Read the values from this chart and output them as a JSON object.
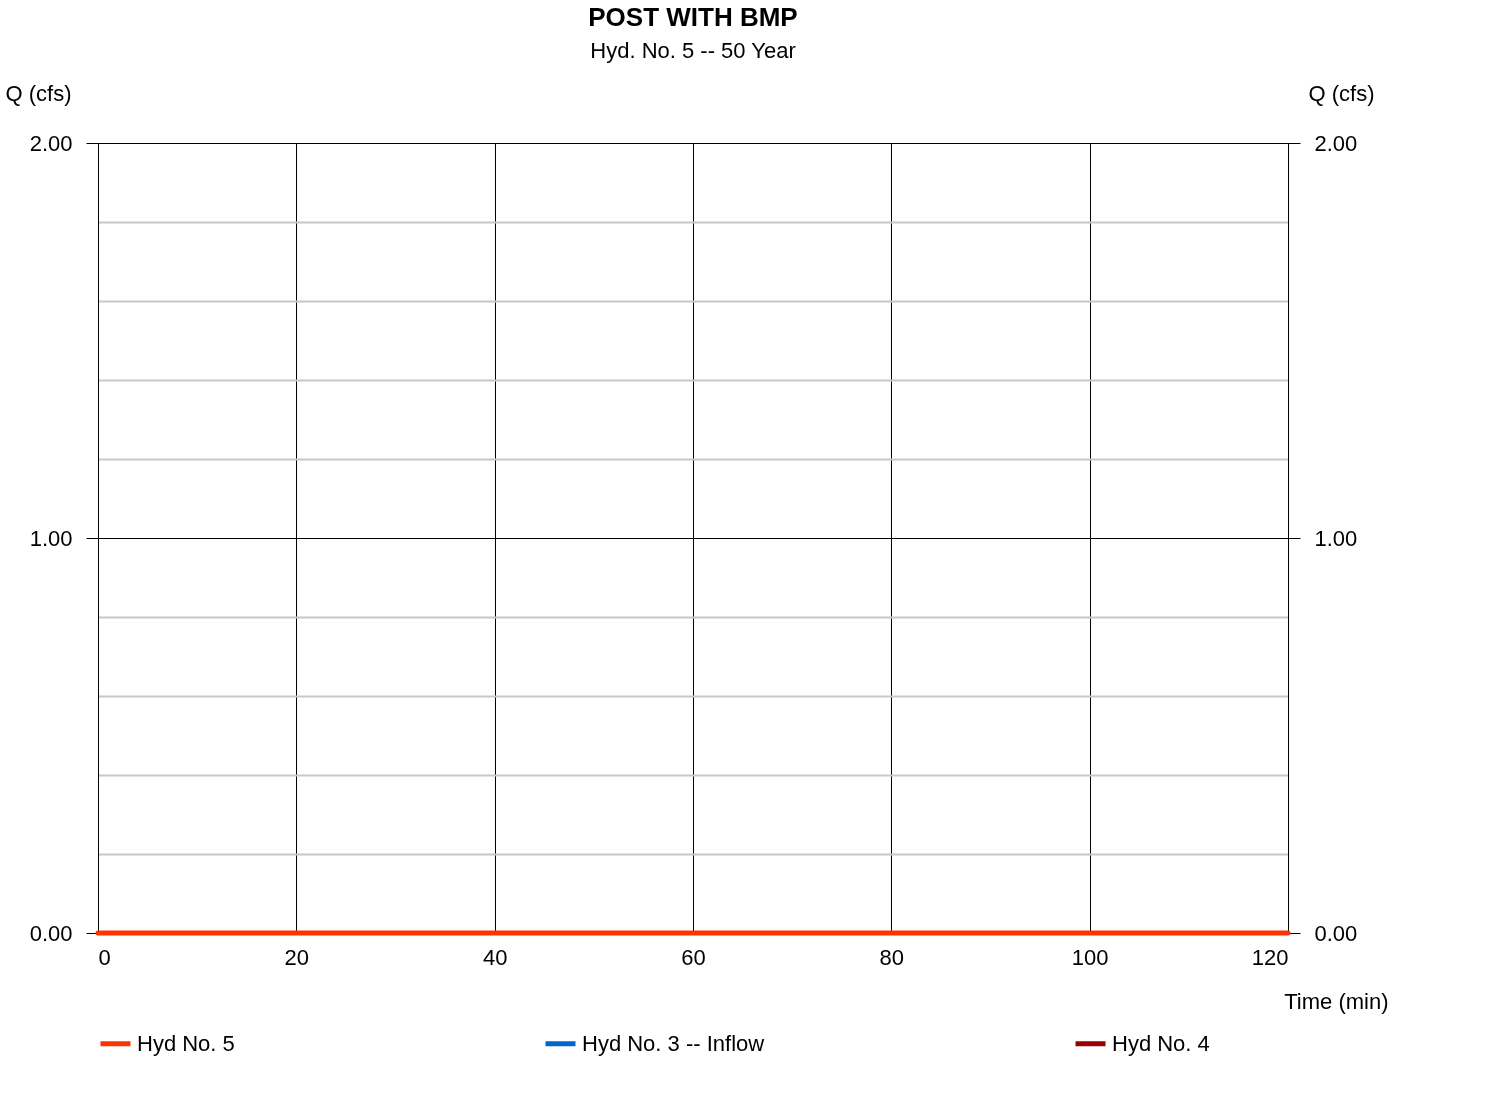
{
  "chart_data": {
    "type": "line",
    "title": "POST WITH BMP",
    "subtitle": "Hyd. No. 5 -- 50 Year",
    "xlabel": "Time (min)",
    "ylabel": "Q (cfs)",
    "y2label": "Q (cfs)",
    "x": [
      0,
      120
    ],
    "series": [
      {
        "name": "Hyd No. 5",
        "color": "#ff3300",
        "values": [
          0,
          0
        ]
      },
      {
        "name": "Hyd No. 3 -- Inflow",
        "color": "#0066cc",
        "values": [
          null,
          null
        ]
      },
      {
        "name": "Hyd No. 4",
        "color": "#990000",
        "values": [
          null,
          null
        ]
      }
    ],
    "xlim": [
      0,
      120
    ],
    "xticks": [
      0,
      20,
      40,
      60,
      80,
      100,
      120
    ],
    "ylim": [
      0,
      2
    ],
    "yticks": [
      {
        "value": 0,
        "label": "0.00"
      },
      {
        "value": 0.2,
        "label": null
      },
      {
        "value": 0.4,
        "label": null
      },
      {
        "value": 0.6,
        "label": null
      },
      {
        "value": 0.8,
        "label": null
      },
      {
        "value": 1,
        "label": "1.00"
      },
      {
        "value": 1.2,
        "label": null
      },
      {
        "value": 1.4,
        "label": null
      },
      {
        "value": 1.6,
        "label": null
      },
      {
        "value": 1.8,
        "label": null
      },
      {
        "value": 2,
        "label": "2.00"
      }
    ],
    "y2lim": [
      0,
      2
    ],
    "y2ticks": [
      {
        "value": 0,
        "label": "0.00"
      },
      {
        "value": 0.2,
        "label": null
      },
      {
        "value": 0.4,
        "label": null
      },
      {
        "value": 0.6,
        "label": null
      },
      {
        "value": 0.8,
        "label": null
      },
      {
        "value": 1,
        "label": "1.00"
      },
      {
        "value": 1.2,
        "label": null
      },
      {
        "value": 1.4,
        "label": null
      },
      {
        "value": 1.6,
        "label": null
      },
      {
        "value": 1.8,
        "label": null
      },
      {
        "value": 2,
        "label": "2.00"
      }
    ],
    "grid": true,
    "legend": "bottom",
    "marker": "none",
    "line_style": "solid"
  }
}
